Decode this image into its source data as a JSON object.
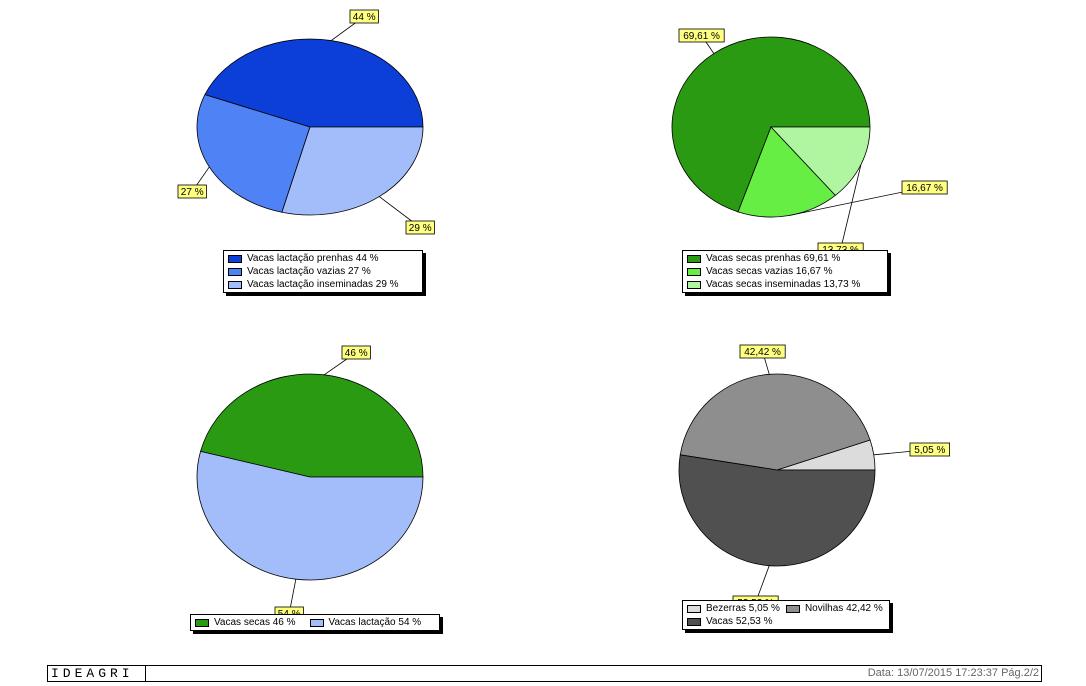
{
  "chart_data": [
    {
      "type": "pie",
      "slices": [
        {
          "label": "Vacas lactação prenhas",
          "value": 44,
          "label_text": "44 %",
          "color": "#0b3fd8"
        },
        {
          "label": "Vacas lactação vazias",
          "value": 27,
          "label_text": "27 %",
          "color": "#4f82f5"
        },
        {
          "label": "Vacas lactação inseminadas",
          "value": 29,
          "label_text": "29 %",
          "color": "#a3bcfa"
        }
      ],
      "legend": [
        "Vacas lactação prenhas 44 %",
        "Vacas lactação vazias 27 %",
        "Vacas lactação inseminadas 29 %"
      ]
    },
    {
      "type": "pie",
      "slices": [
        {
          "label": "Vacas secas prenhas",
          "value": 69.61,
          "label_text": "69,61 %",
          "color": "#2a9a12"
        },
        {
          "label": "Vacas secas vazias",
          "value": 16.67,
          "label_text": "16,67 %",
          "color": "#66ee44"
        },
        {
          "label": "Vacas secas inseminadas",
          "value": 13.73,
          "label_text": "13,73 %",
          "color": "#b0f5a0"
        }
      ],
      "legend": [
        "Vacas secas prenhas 69,61 %",
        "Vacas secas vazias 16,67 %",
        "Vacas secas inseminadas 13,73 %"
      ]
    },
    {
      "type": "pie",
      "slices": [
        {
          "label": "Vacas secas",
          "value": 46,
          "label_text": "46 %",
          "color": "#2a9a12"
        },
        {
          "label": "Vacas lactação",
          "value": 54,
          "label_text": "54 %",
          "color": "#a3bcfa"
        }
      ],
      "legend": [
        "Vacas secas 46 %",
        "Vacas lactação 54 %"
      ]
    },
    {
      "type": "pie",
      "slices": [
        {
          "label": "Bezerras",
          "value": 5.05,
          "label_text": "5,05 %",
          "color": "#dcdcdc"
        },
        {
          "label": "Novilhas",
          "value": 42.42,
          "label_text": "42,42 %",
          "color": "#8e8e8e"
        },
        {
          "label": "Vacas",
          "value": 52.53,
          "label_text": "52,53 %",
          "color": "#505050"
        }
      ],
      "legend": [
        "Bezerras 5,05 %",
        "Novilhas 42,42 %",
        "Vacas 52,53 %"
      ]
    }
  ],
  "footer": {
    "brand": "IDEAGRI",
    "date": "Data: 13/07/2015 17:23:37 Pág.2/2"
  }
}
